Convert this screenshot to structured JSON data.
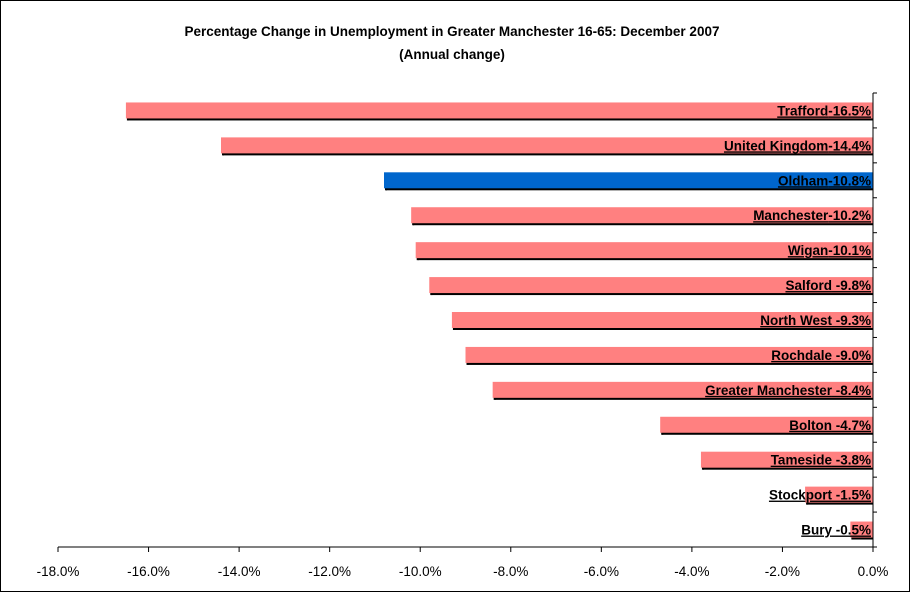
{
  "chart_data": {
    "type": "bar",
    "orientation": "horizontal",
    "title": "Percentage Change in Unemployment in Greater Manchester 16-65: December 2007",
    "subtitle": "(Annual change)",
    "categories": [
      "Trafford",
      "United Kingdom",
      "Oldham",
      "Manchester",
      "Wigan",
      "Salford",
      "North West",
      "Rochdale",
      "Greater Manchester",
      "Bolton",
      "Tameside",
      "Stockport",
      "Bury"
    ],
    "values": [
      -16.5,
      -14.4,
      -10.8,
      -10.2,
      -10.1,
      -9.8,
      -9.3,
      -9.0,
      -8.4,
      -4.7,
      -3.8,
      -1.5,
      -0.5
    ],
    "value_labels": [
      "-16.5%",
      "-14.4%",
      "-10.8%",
      "-10.2%",
      "-10.1%",
      "-9.8%",
      "-9.3%",
      "-9.0%",
      "-8.4%",
      "-4.7%",
      "-3.8%",
      "-1.5%",
      "-0.5%"
    ],
    "highlight": "Oldham",
    "xlim": [
      -18.0,
      0.0
    ],
    "xticks": [
      -18.0,
      -16.0,
      -14.0,
      -12.0,
      -10.0,
      -8.0,
      -6.0,
      -4.0,
      -2.0,
      0.0
    ],
    "xtick_labels": [
      "-18.0%",
      "-16.0%",
      "-14.0%",
      "-12.0%",
      "-10.0%",
      "-8.0%",
      "-6.0%",
      "-4.0%",
      "-2.0%",
      "0.0%"
    ],
    "xlabel": "",
    "ylabel": "",
    "grid": false,
    "legend": "none",
    "colors": {
      "bar": "#ff8080",
      "highlight": "#0066cc",
      "shadow": "#000000"
    }
  }
}
